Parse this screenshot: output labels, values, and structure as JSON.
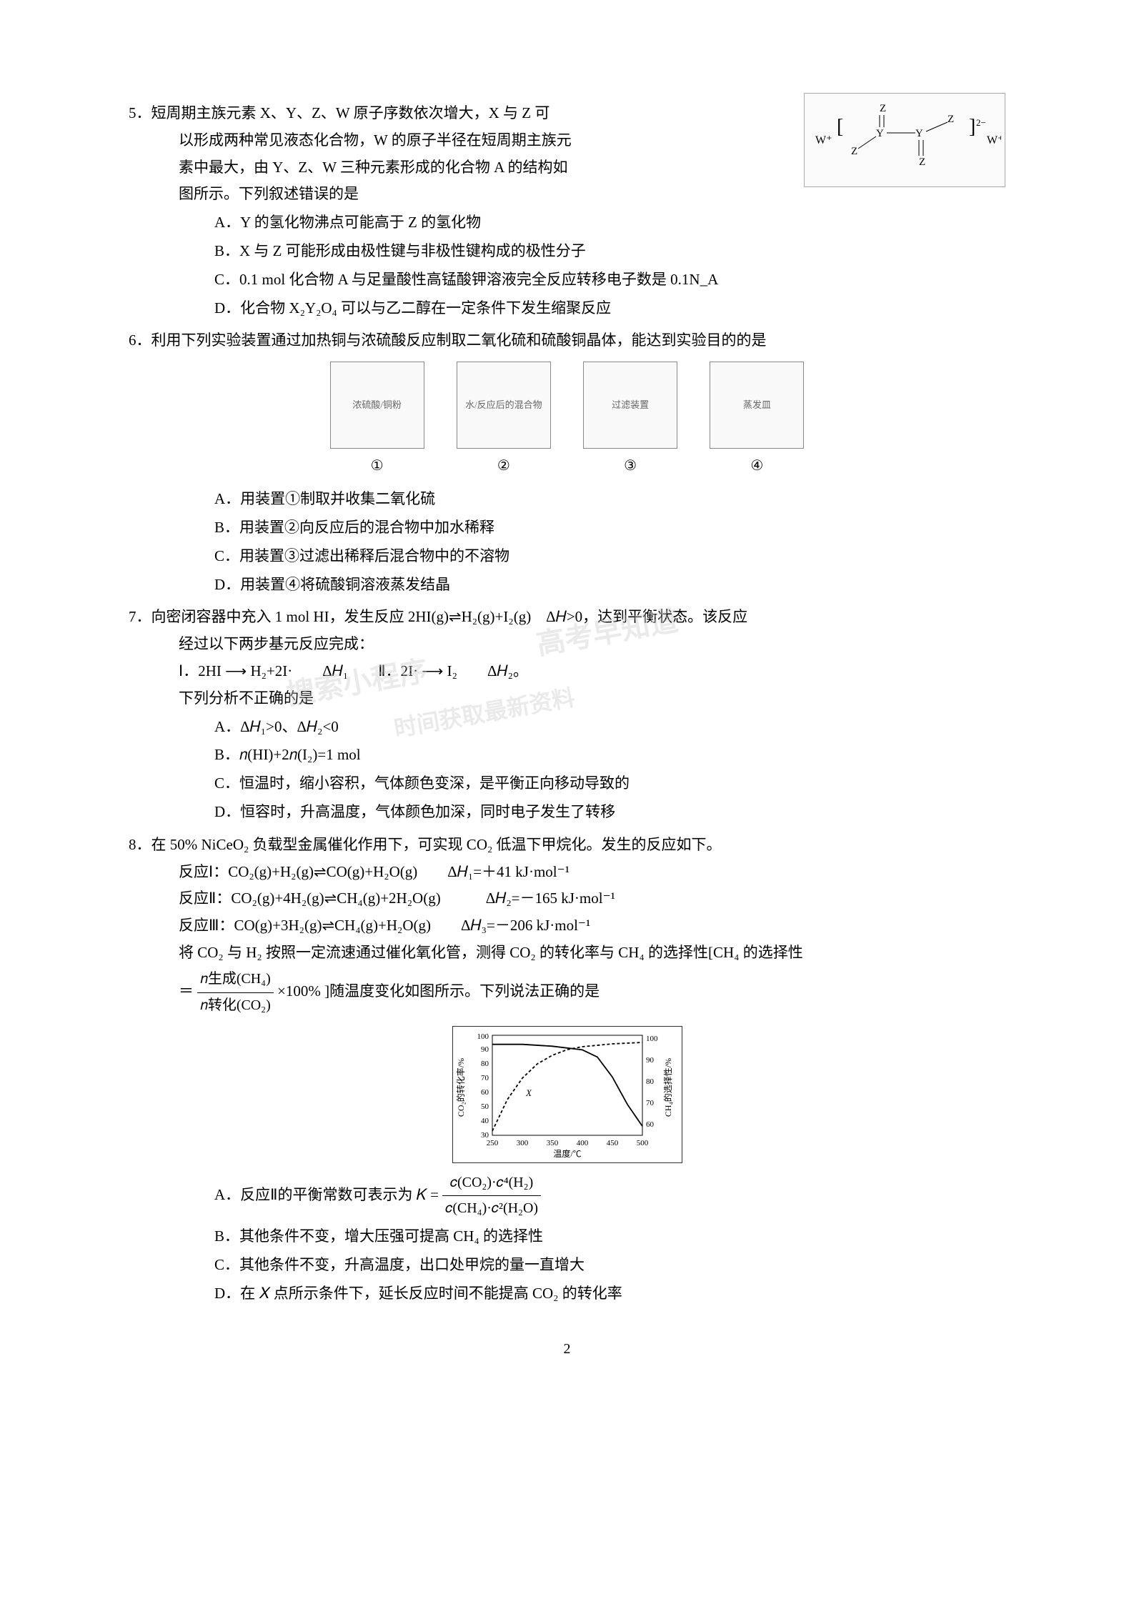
{
  "q5": {
    "num": "5．",
    "stem_lines": [
      "短周期主族元素 X、Y、Z、W 原子序数依次增大，X 与 Z 可",
      "以形成两种常见液态化合物，W 的原子半径在短周期主族元",
      "素中最大，由 Y、Z、W 三种元素形成的化合物 A 的结构如",
      "图所示。下列叙述错误的是"
    ],
    "options": {
      "A": "A．Y 的氢化物沸点可能高于 Z 的氢化物",
      "B": "B．X 与 Z 可能形成由极性键与非极性键构成的极性分子",
      "C": "C．0.1 mol 化合物 A 与足量酸性高锰酸钾溶液完全反应转移电子数是 0.1N_A",
      "D": "D．化合物 X₂Y₂O₄ 可以与乙二醇在一定条件下发生缩聚反应"
    },
    "struct_label": "结构式: W⁺ [Z-Y(=Z)-Y(=Z)-Z]²⁻ W⁺"
  },
  "q6": {
    "num": "6．",
    "stem": "利用下列实验装置通过加热铜与浓硫酸反应制取二氧化硫和硫酸铜晶体，能达到实验目的的是",
    "fig_labels": {
      "1": "①",
      "2": "②",
      "3": "③",
      "4": "④"
    },
    "fig_captions": {
      "1": "浓硫酸/铜粉",
      "2": "水/反应后的混合物",
      "3": "过滤装置",
      "4": "蒸发皿"
    },
    "options": {
      "A": "A．用装置①制取并收集二氧化硫",
      "B": "B．用装置②向反应后的混合物中加水稀释",
      "C": "C．用装置③过滤出稀释后混合物中的不溶物",
      "D": "D．用装置④将硫酸铜溶液蒸发结晶"
    }
  },
  "q7": {
    "num": "7．",
    "stem_line1": "向密闭容器中充入 1 mol HI，发生反应 2HI(g)⇌H₂(g)+I₂(g)　Δ𝐻>0，达到平衡状态。该反应",
    "stem_line2": "经过以下两步基元反应完成：",
    "step1": "Ⅰ．2HI ⟶ H₂+2I·　　Δ𝐻₁　　Ⅱ．2I· ⟶ I₂　　Δ𝐻₂。",
    "stem_line3": "下列分析不正确的是",
    "options": {
      "A": "A．Δ𝐻₁>0、Δ𝐻₂<0",
      "B": "B．𝑛(HI)+2𝑛(I₂)=1 mol",
      "C": "C．恒温时，缩小容积，气体颜色变深，是平衡正向移动导致的",
      "D": "D．恒容时，升高温度，气体颜色加深，同时电子发生了转移"
    }
  },
  "q8": {
    "num": "8．",
    "stem_line1": "在 50% NiCeO₂ 负载型金属催化作用下，可实现 CO₂ 低温下甲烷化。发生的反应如下。",
    "rxn1": "反应Ⅰ：CO₂(g)+H₂(g)⇌CO(g)+H₂O(g)　　Δ𝐻₁=＋41 kJ·mol⁻¹",
    "rxn2": "反应Ⅱ：CO₂(g)+4H₂(g)⇌CH₄(g)+2H₂O(g)　　　Δ𝐻₂=－165 kJ·mol⁻¹",
    "rxn3": "反应Ⅲ：CO(g)+3H₂(g)⇌CH₄(g)+H₂O(g)　　Δ𝐻₃=－206 kJ·mol⁻¹",
    "stem_line2a": "将 CO₂ 与 H₂ 按照一定流速通过催化氧化管，测得 CO₂ 的转化率与 CH₄ 的选择性[CH₄ 的选择性",
    "stem_line2b": "×100% ]随温度变化如图所示。下列说法正确的是",
    "frac_num": "𝑛生成(CH₄)",
    "frac_den": "𝑛转化(CO₂)",
    "frac_prefix": "＝",
    "options": {
      "A_prefix": "A．反应Ⅱ的平衡常数可表示为 𝐾 = ",
      "A_frac_num": "𝑐(CO₂)·𝑐⁴(H₂)",
      "A_frac_den": "𝑐(CH₄)·𝑐²(H₂O)",
      "B": "B．其他条件不变，增大压强可提高 CH₄ 的选择性",
      "C": "C．其他条件不变，升高温度，出口处甲烷的量一直增大",
      "D": "D．在 𝑋 点所示条件下，延长反应时间不能提高 CO₂ 的转化率"
    },
    "chart": {
      "xlabel": "温度/℃",
      "ylabel_left": "CO₂的转化率/%",
      "ylabel_right": "CH₄的选择性/%",
      "x_ticks": [
        250,
        300,
        350,
        400,
        450,
        500
      ],
      "y_left_ticks": [
        30,
        40,
        50,
        60,
        70,
        80,
        90,
        100
      ],
      "y_right_ticks": [
        60,
        70,
        80,
        90,
        100
      ],
      "point_label": "X",
      "series1_color": "#000000",
      "series2_color": "#000000",
      "background": "#ffffff",
      "xlim": [
        250,
        500
      ],
      "ylim_left": [
        30,
        100
      ],
      "ylim_right": [
        50,
        105
      ],
      "series_conv": [
        [
          250,
          33
        ],
        [
          275,
          55
        ],
        [
          300,
          70
        ],
        [
          325,
          80
        ],
        [
          350,
          86
        ],
        [
          375,
          90
        ],
        [
          400,
          92
        ],
        [
          450,
          94
        ],
        [
          500,
          95
        ]
      ],
      "series_sel": [
        [
          250,
          100
        ],
        [
          300,
          100
        ],
        [
          350,
          99
        ],
        [
          400,
          97
        ],
        [
          425,
          93
        ],
        [
          450,
          82
        ],
        [
          475,
          67
        ],
        [
          500,
          55
        ]
      ],
      "x_point": [
        300,
        60
      ]
    }
  },
  "page_number": "2",
  "watermarks": [
    "高考早知道",
    "搜索小程序",
    "时间获取最新资料"
  ]
}
